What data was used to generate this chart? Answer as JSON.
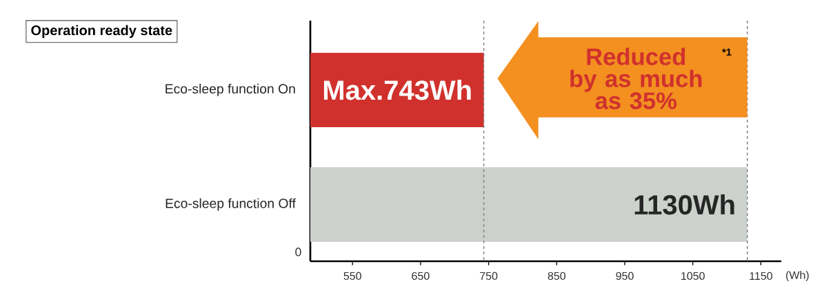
{
  "chart_data": {
    "type": "bar",
    "orientation": "horizontal",
    "title": "Operation ready state",
    "xlabel": "(Wh)",
    "categories": [
      "Eco-sleep function On",
      "Eco-sleep function Off"
    ],
    "values": [
      743,
      1130
    ],
    "colors": [
      "#d0312d",
      "#ccd1cc"
    ],
    "value_labels": [
      "Max.743Wh",
      "1130Wh"
    ],
    "xlim": [
      488,
      1180
    ],
    "xticks": [
      550,
      650,
      750,
      850,
      950,
      1050,
      1150
    ],
    "ref_lines": [
      {
        "axis": "x",
        "value": 743,
        "color": "#808080",
        "line_style": "dashed"
      },
      {
        "axis": "x",
        "value": 1130,
        "color": "#808080",
        "line_style": "dashed"
      }
    ],
    "annotations": [
      "Reduced by as much as 35%",
      "*1",
      "0"
    ]
  }
}
